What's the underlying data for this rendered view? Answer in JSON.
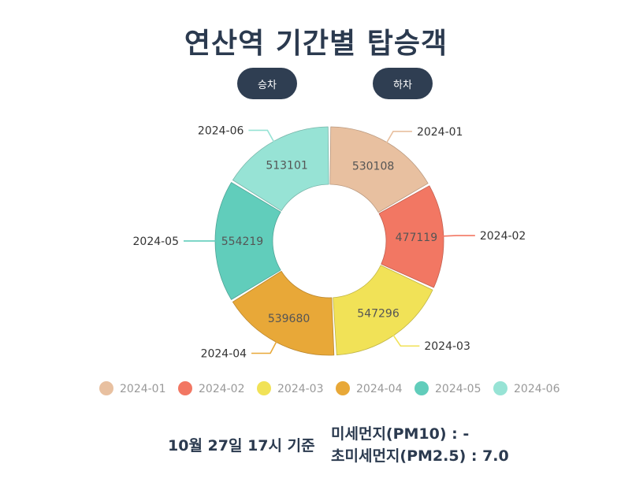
{
  "header": {
    "title": "연산역 기간별 탑승객"
  },
  "toggles": {
    "board_label": "승차",
    "alight_label": "하차"
  },
  "chart_data": {
    "type": "pie",
    "donut": true,
    "categories": [
      "2024-01",
      "2024-02",
      "2024-03",
      "2024-04",
      "2024-05",
      "2024-06"
    ],
    "values": [
      530108,
      477119,
      547296,
      539680,
      554219,
      513101
    ],
    "colors": [
      "#e8c0a0",
      "#f27763",
      "#f1e257",
      "#e8a838",
      "#61cdbb",
      "#97e3d5"
    ],
    "legend_position": "bottom"
  },
  "footer": {
    "time_label": "10월 27일 17시 기준",
    "pm10_label": "미세먼지(PM10) : -",
    "pm25_label": "초미세먼지(PM2.5) : 7.0"
  }
}
